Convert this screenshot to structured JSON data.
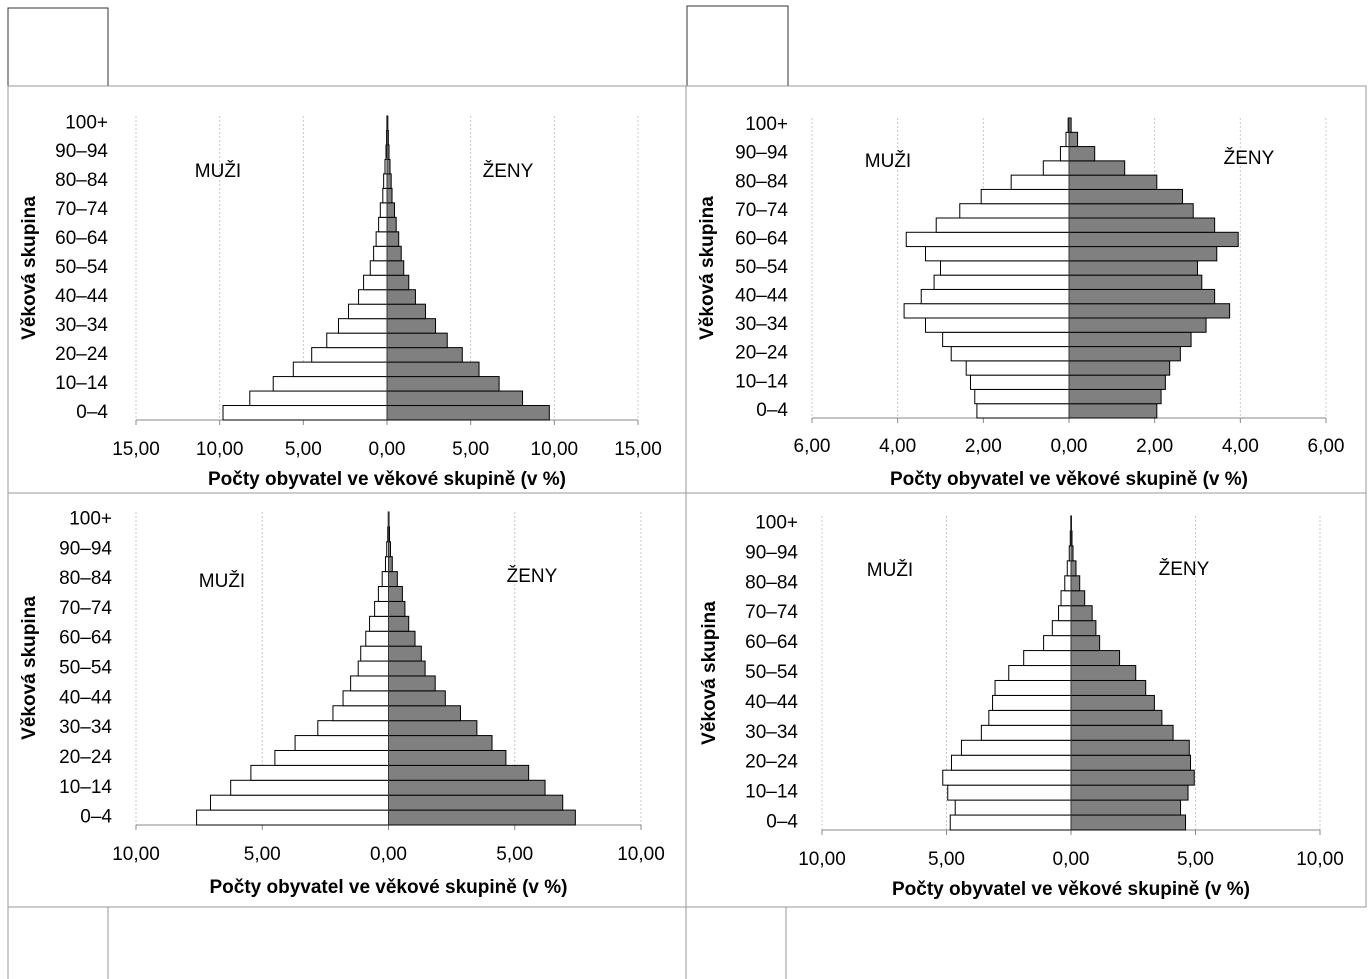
{
  "chart_data": [
    {
      "type": "bar",
      "orientation": "horizontal",
      "x_label": "Počty obyvatel ve věkové skupině (v %)",
      "y_label": "Věková skupina",
      "categories": [
        "0–4",
        null,
        "10–14",
        null,
        "20–24",
        null,
        "30–34",
        null,
        "40–44",
        null,
        "50–54",
        null,
        "60–64",
        null,
        "70–74",
        null,
        "80–84",
        null,
        "90–94",
        null,
        "100+"
      ],
      "series": [
        {
          "name": "MUŽI",
          "color": "#ffffff",
          "values": [
            -9.8,
            -8.2,
            -6.8,
            -5.6,
            -4.5,
            -3.6,
            -2.9,
            -2.3,
            -1.7,
            -1.4,
            -1.0,
            -0.8,
            -0.65,
            -0.5,
            -0.4,
            -0.25,
            -0.2,
            -0.12,
            -0.06,
            -0.03,
            -0.01
          ]
        },
        {
          "name": "ŽENY",
          "color": "#808080",
          "values": [
            9.7,
            8.1,
            6.7,
            5.5,
            4.5,
            3.6,
            2.9,
            2.3,
            1.7,
            1.3,
            1.0,
            0.85,
            0.7,
            0.55,
            0.45,
            0.3,
            0.25,
            0.18,
            0.12,
            0.08,
            0.05
          ]
        }
      ],
      "xlim": [
        -15,
        15
      ],
      "xticks": [
        {
          "value": -15,
          "label": "15,00"
        },
        {
          "value": -10,
          "label": "10,00"
        },
        {
          "value": -5,
          "label": "5,00"
        },
        {
          "value": 0,
          "label": "0,00"
        },
        {
          "value": 5,
          "label": "5,00"
        },
        {
          "value": 10,
          "label": "10,00"
        },
        {
          "value": 15,
          "label": "15,00"
        }
      ],
      "grid": true
    },
    {
      "type": "bar",
      "orientation": "horizontal",
      "x_label": "Počty obyvatel ve věkové skupině (v %)",
      "y_label": "Věková skupina",
      "categories": [
        "0–4",
        null,
        "10–14",
        null,
        "20–24",
        null,
        "30–34",
        null,
        "40–44",
        null,
        "50–54",
        null,
        "60–64",
        null,
        "70–74",
        null,
        "80–84",
        null,
        "90–94",
        null,
        "100+"
      ],
      "series": [
        {
          "name": "MUŽI",
          "color": "#ffffff",
          "values": [
            -2.15,
            -2.2,
            -2.3,
            -2.4,
            -2.75,
            -2.95,
            -3.35,
            -3.85,
            -3.45,
            -3.15,
            -3.0,
            -3.35,
            -3.8,
            -3.1,
            -2.55,
            -2.05,
            -1.35,
            -0.6,
            -0.2,
            -0.07,
            -0.02
          ]
        },
        {
          "name": "ŽENY",
          "color": "#808080",
          "values": [
            2.05,
            2.15,
            2.25,
            2.35,
            2.6,
            2.85,
            3.2,
            3.75,
            3.4,
            3.1,
            3.0,
            3.45,
            3.95,
            3.4,
            2.9,
            2.65,
            2.05,
            1.3,
            0.6,
            0.2,
            0.05
          ]
        }
      ],
      "xlim": [
        -6,
        6
      ],
      "xticks": [
        {
          "value": -6,
          "label": "6,00"
        },
        {
          "value": -4,
          "label": "4,00"
        },
        {
          "value": -2,
          "label": "2,00"
        },
        {
          "value": 0,
          "label": "0,00"
        },
        {
          "value": 2,
          "label": "2,00"
        },
        {
          "value": 4,
          "label": "4,00"
        },
        {
          "value": 6,
          "label": "6,00"
        }
      ],
      "grid": true
    },
    {
      "type": "bar",
      "orientation": "horizontal",
      "x_label": "Počty obyvatel ve věkové skupině (v %)",
      "y_label": "Věková skupina",
      "categories": [
        "0–4",
        null,
        "10–14",
        null,
        "20–24",
        null,
        "30–34",
        null,
        "40–44",
        null,
        "50–54",
        null,
        "60–64",
        null,
        "70–74",
        null,
        "80–84",
        null,
        "90–94",
        null,
        "100+"
      ],
      "series": [
        {
          "name": "MUŽI",
          "color": "#ffffff",
          "values": [
            -7.6,
            -7.05,
            -6.25,
            -5.45,
            -4.5,
            -3.7,
            -2.8,
            -2.2,
            -1.8,
            -1.5,
            -1.2,
            -1.1,
            -0.9,
            -0.75,
            -0.55,
            -0.4,
            -0.25,
            -0.12,
            -0.07,
            -0.03,
            -0.01
          ]
        },
        {
          "name": "ŽENY",
          "color": "#808080",
          "values": [
            7.4,
            6.9,
            6.2,
            5.55,
            4.65,
            4.1,
            3.5,
            2.85,
            2.25,
            1.85,
            1.45,
            1.3,
            1.05,
            0.8,
            0.65,
            0.55,
            0.35,
            0.15,
            0.08,
            0.04,
            0.02
          ]
        }
      ],
      "xlim": [
        -10,
        10
      ],
      "xticks": [
        {
          "value": -10,
          "label": "10,00"
        },
        {
          "value": -5,
          "label": "5,00"
        },
        {
          "value": 0,
          "label": "0,00"
        },
        {
          "value": 5,
          "label": "5,00"
        },
        {
          "value": 10,
          "label": "10,00"
        }
      ],
      "grid": true
    },
    {
      "type": "bar",
      "orientation": "horizontal",
      "x_label": "Počty obyvatel ve věkové skupině (v %)",
      "y_label": "Věková skupina",
      "categories": [
        "0–4",
        null,
        "10–14",
        null,
        "20–24",
        null,
        "30–34",
        null,
        "40–44",
        null,
        "50–54",
        null,
        "60–64",
        null,
        "70–74",
        null,
        "80–84",
        null,
        "90–94",
        null,
        "100+"
      ],
      "series": [
        {
          "name": "MUŽI",
          "color": "#ffffff",
          "values": [
            -4.85,
            -4.65,
            -4.95,
            -5.15,
            -4.8,
            -4.4,
            -3.6,
            -3.3,
            -3.15,
            -3.05,
            -2.5,
            -1.9,
            -1.1,
            -0.75,
            -0.5,
            -0.4,
            -0.25,
            -0.15,
            -0.07,
            -0.03,
            -0.01
          ]
        },
        {
          "name": "ŽENY",
          "color": "#808080",
          "values": [
            4.6,
            4.4,
            4.7,
            4.95,
            4.8,
            4.75,
            4.1,
            3.65,
            3.35,
            3.0,
            2.6,
            1.95,
            1.15,
            1.0,
            0.85,
            0.55,
            0.35,
            0.2,
            0.08,
            0.04,
            0.02
          ]
        }
      ],
      "xlim": [
        -10,
        10
      ],
      "xticks": [
        {
          "value": -10,
          "label": "10,00"
        },
        {
          "value": -5,
          "label": "5,00"
        },
        {
          "value": 0,
          "label": "0,00"
        },
        {
          "value": 5,
          "label": "5,00"
        },
        {
          "value": 10,
          "label": "10,00"
        }
      ],
      "grid": true
    }
  ]
}
